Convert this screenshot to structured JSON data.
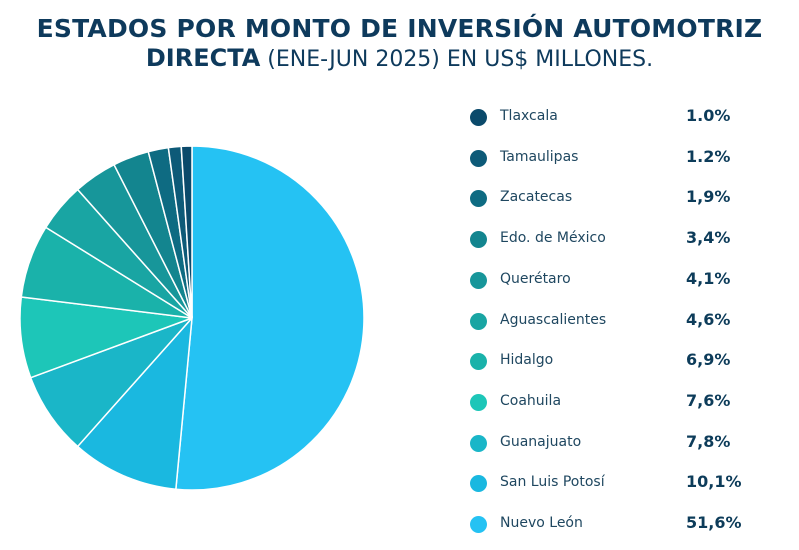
{
  "title": {
    "line1": "ESTADOS POR MONTO DE INVERSIÓN AUTOMOTRIZ",
    "line2_bold": "DIRECTA",
    "line2_rest": " (ENE-JUN 2025) EN US$ MILLONES."
  },
  "chart_data": {
    "type": "pie",
    "title": "ESTADOS POR MONTO DE INVERSIÓN AUTOMOTRIZ DIRECTA (ENE-JUN 2025) EN US$ MILLONES.",
    "legend_position": "right",
    "slices": [
      {
        "label": "Tlaxcala",
        "value": 1.0,
        "display": "1.0%",
        "color": "#0b4a6b"
      },
      {
        "label": "Tamaulipas",
        "value": 1.2,
        "display": "1.2%",
        "color": "#0d5a78"
      },
      {
        "label": "Zacatecas",
        "value": 1.9,
        "display": "1,9%",
        "color": "#0e6b82"
      },
      {
        "label": "Edo. de México",
        "value": 3.4,
        "display": "3,4%",
        "color": "#13858f"
      },
      {
        "label": "Querétaro",
        "value": 4.1,
        "display": "4,1%",
        "color": "#17969a"
      },
      {
        "label": "Aguascalientes",
        "value": 4.6,
        "display": "4,6%",
        "color": "#19a5a3"
      },
      {
        "label": "Hidalgo",
        "value": 6.9,
        "display": "6,9%",
        "color": "#1ab2aa"
      },
      {
        "label": "Coahuila",
        "value": 7.6,
        "display": "7,6%",
        "color": "#1dc6b8"
      },
      {
        "label": "Guanajuato",
        "value": 7.8,
        "display": "7,8%",
        "color": "#1ab6c8"
      },
      {
        "label": "San Luis Potosí",
        "value": 10.1,
        "display": "10,1%",
        "color": "#1ab8e0"
      },
      {
        "label": "Nuevo León",
        "value": 51.6,
        "display": "51,6%",
        "color": "#25c2f3"
      }
    ]
  }
}
